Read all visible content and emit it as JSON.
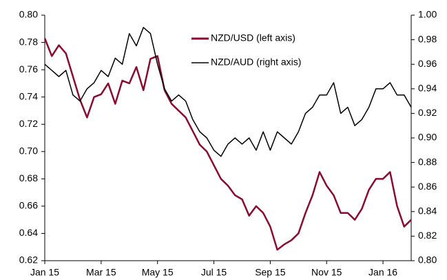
{
  "chart_data": {
    "type": "line",
    "x": [
      0,
      0.25,
      0.5,
      0.75,
      1,
      1.25,
      1.5,
      1.75,
      2,
      2.25,
      2.5,
      2.75,
      3,
      3.25,
      3.5,
      3.75,
      4,
      4.25,
      4.5,
      4.75,
      5,
      5.25,
      5.5,
      5.75,
      6,
      6.25,
      6.5,
      6.75,
      7,
      7.25,
      7.5,
      7.75,
      8,
      8.25,
      8.5,
      8.75,
      9,
      9.25,
      9.5,
      9.75,
      10,
      10.25,
      10.5,
      10.75,
      11,
      11.25,
      11.5,
      11.75,
      12,
      12.25,
      12.5,
      12.75,
      13
    ],
    "series": [
      {
        "name": "NZD/USD (left axis)",
        "color": "#8b0a2f",
        "axis": "y",
        "values": [
          0.783,
          0.77,
          0.778,
          0.772,
          0.755,
          0.738,
          0.725,
          0.74,
          0.742,
          0.75,
          0.735,
          0.752,
          0.75,
          0.762,
          0.745,
          0.768,
          0.77,
          0.745,
          0.735,
          0.73,
          0.725,
          0.715,
          0.705,
          0.7,
          0.69,
          0.68,
          0.675,
          0.668,
          0.665,
          0.653,
          0.66,
          0.655,
          0.645,
          0.628,
          0.632,
          0.635,
          0.64,
          0.655,
          0.668,
          0.685,
          0.675,
          0.668,
          0.655,
          0.655,
          0.65,
          0.658,
          0.672,
          0.68,
          0.68,
          0.685,
          0.66,
          0.645,
          0.65
        ]
      },
      {
        "name": "NZD/AUD (right axis)",
        "color": "#000000",
        "axis": "y2",
        "values": [
          0.96,
          0.955,
          0.95,
          0.955,
          0.935,
          0.93,
          0.94,
          0.945,
          0.955,
          0.95,
          0.965,
          0.96,
          0.985,
          0.975,
          0.99,
          0.985,
          0.96,
          0.94,
          0.93,
          0.935,
          0.93,
          0.915,
          0.905,
          0.9,
          0.89,
          0.885,
          0.895,
          0.9,
          0.895,
          0.9,
          0.89,
          0.905,
          0.89,
          0.905,
          0.9,
          0.895,
          0.905,
          0.92,
          0.925,
          0.935,
          0.935,
          0.945,
          0.92,
          0.925,
          0.91,
          0.915,
          0.925,
          0.94,
          0.94,
          0.945,
          0.935,
          0.935,
          0.925
        ]
      }
    ],
    "xlim": [
      0,
      13
    ],
    "xticks": [
      {
        "value": 0,
        "label": "Jan 15"
      },
      {
        "value": 2,
        "label": "Mar 15"
      },
      {
        "value": 4,
        "label": "May 15"
      },
      {
        "value": 6,
        "label": "Jul 15"
      },
      {
        "value": 8,
        "label": "Sep 15"
      },
      {
        "value": 10,
        "label": "Nov 15"
      },
      {
        "value": 12,
        "label": "Jan 16"
      }
    ],
    "ylim": [
      0.62,
      0.8
    ],
    "yticks": [
      {
        "value": 0.62,
        "label": "0.62"
      },
      {
        "value": 0.64,
        "label": "0.64"
      },
      {
        "value": 0.66,
        "label": "0.66"
      },
      {
        "value": 0.68,
        "label": "0.68"
      },
      {
        "value": 0.7,
        "label": "0.70"
      },
      {
        "value": 0.72,
        "label": "0.72"
      },
      {
        "value": 0.74,
        "label": "0.74"
      },
      {
        "value": 0.76,
        "label": "0.76"
      },
      {
        "value": 0.78,
        "label": "0.78"
      },
      {
        "value": 0.8,
        "label": "0.80"
      }
    ],
    "y2lim": [
      0.8,
      1.0
    ],
    "y2ticks": [
      {
        "value": 0.8,
        "label": "0.80"
      },
      0.82,
      0.84,
      0.86,
      0.88,
      {
        "value": 0.9,
        "label": "0.90"
      },
      0.92,
      0.94,
      0.96,
      0.98,
      {
        "value": 1,
        "label": "1.00"
      }
    ]
  }
}
